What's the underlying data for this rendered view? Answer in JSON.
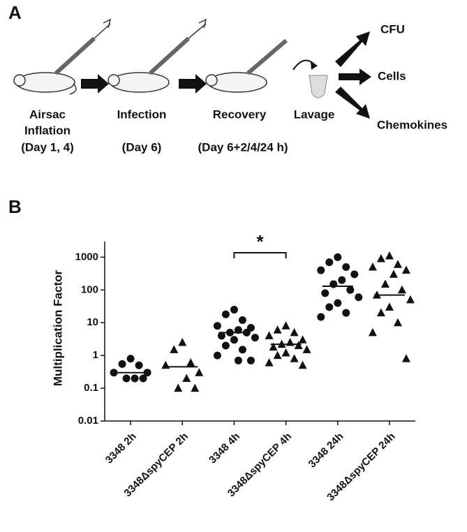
{
  "panel_a": {
    "label": "A",
    "steps": [
      {
        "lines": [
          "Airsac",
          "Inflation"
        ],
        "time": "(Day 1, 4)"
      },
      {
        "lines": [
          "Infection"
        ],
        "time": "(Day 6)"
      },
      {
        "lines": [
          "Recovery"
        ],
        "time": "(Day 6+2/4/24 h)"
      },
      {
        "lines": [
          "Lavage"
        ]
      }
    ],
    "outputs": [
      "CFU",
      "Cells",
      "Chemokines"
    ]
  },
  "chart_data": {
    "type": "dotplot",
    "panel_label": "B",
    "y_label": "Multiplication Factor",
    "categories": [
      "3348 2h",
      "3348ΔspyCEP 2h",
      "3348 4h",
      "3348ΔspyCEP 4h",
      "3348 24h",
      "3348ΔspyCEP 24h"
    ],
    "markers": [
      "circle",
      "triangle",
      "circle",
      "triangle",
      "circle",
      "triangle"
    ],
    "color": "#111111",
    "values": [
      [
        0.8,
        0.55,
        0.5,
        0.3,
        0.3,
        0.2,
        0.2,
        0.2
      ],
      [
        2.5,
        1.5,
        0.6,
        0.5,
        0.3,
        0.2,
        0.1,
        0.1
      ],
      [
        25,
        18,
        12,
        8,
        7,
        6,
        5,
        5,
        4,
        3.5,
        3,
        2,
        1.5,
        1,
        0.7,
        0.7
      ],
      [
        8,
        6,
        5,
        4,
        3,
        2.5,
        2.2,
        2,
        1.8,
        1.5,
        1.2,
        1,
        0.8,
        0.6,
        0.5
      ],
      [
        1000,
        700,
        500,
        400,
        300,
        200,
        150,
        100,
        80,
        60,
        40,
        30,
        20,
        15
      ],
      [
        1100,
        900,
        600,
        500,
        400,
        300,
        150,
        100,
        70,
        50,
        30,
        20,
        10,
        5,
        0.8
      ]
    ],
    "medians": [
      0.3,
      0.45,
      5,
      2.2,
      130,
      70
    ],
    "significance": [
      {
        "label": "*",
        "from": "3348 4h",
        "to": "3348ΔspyCEP 4h"
      }
    ],
    "y_scale": "log",
    "ylim": [
      0.01,
      3000
    ],
    "yticks": [
      0.01,
      0.1,
      1,
      10,
      100,
      1000
    ]
  }
}
